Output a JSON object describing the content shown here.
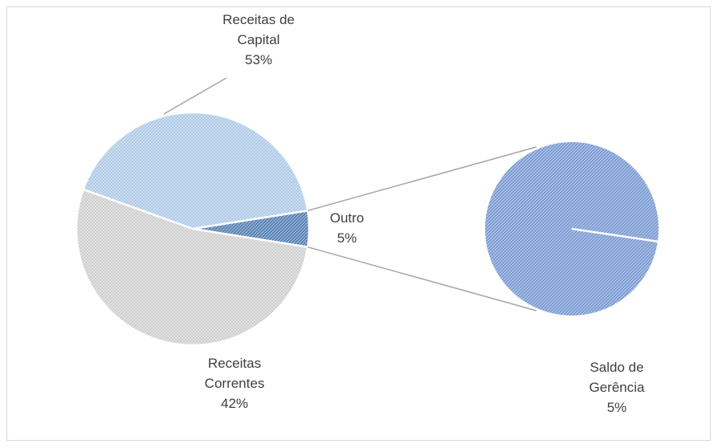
{
  "chart_data": {
    "type": "pie-of-pie",
    "categories": [
      "Receitas de Capital",
      "Receitas Correntes",
      "Outro"
    ],
    "values": [
      53,
      42,
      5
    ],
    "value_labels": [
      "53%",
      "42%",
      "5%"
    ],
    "colors": [
      "#d4d4d4",
      "#b4cfec",
      "#5a86b8"
    ],
    "secondary": {
      "categories": [
        "Saldo de Gerência"
      ],
      "values": [
        5
      ],
      "value_labels": [
        "5%"
      ],
      "colors": [
        "#7e9fd8"
      ]
    }
  }
}
